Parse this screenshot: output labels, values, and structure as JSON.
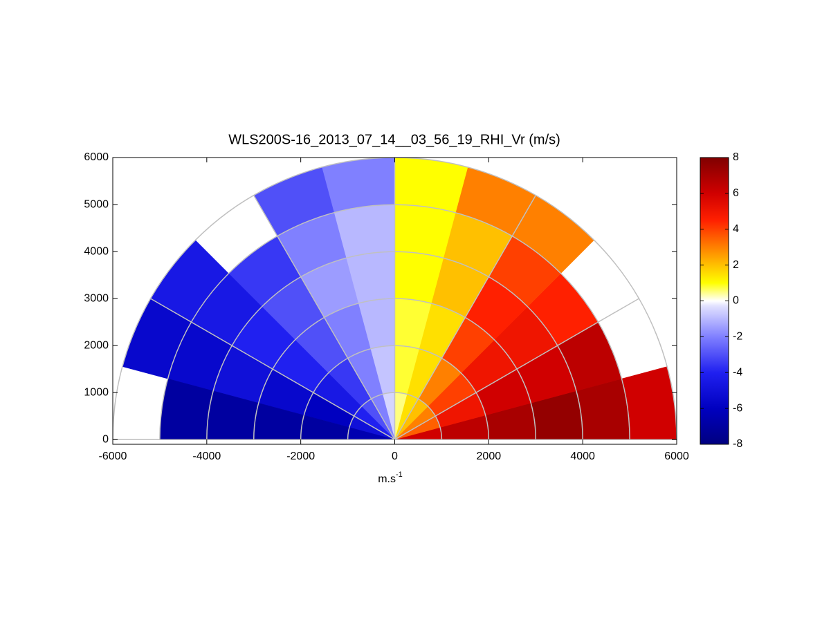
{
  "chart_data": {
    "type": "polar_sector_heatmap",
    "title": "WLS200S-16_2013_07_14__03_56_19_RHI_Vr (m/s)",
    "xlabel": "m.s",
    "xlabel_sup": "-1",
    "xlim": [
      -6000,
      6000
    ],
    "xticks": [
      -6000,
      -4000,
      -2000,
      0,
      2000,
      4000,
      6000
    ],
    "ylim": [
      -100,
      6000
    ],
    "yticks": [
      0,
      1000,
      2000,
      3000,
      4000,
      5000,
      6000
    ],
    "angle_bins": [
      0,
      15,
      30,
      45,
      60,
      75,
      90,
      105,
      120,
      135,
      150,
      165,
      180
    ],
    "range_bins": [
      0,
      1000,
      2000,
      3000,
      4000,
      5000,
      6000
    ],
    "values": [
      [
        6,
        6.5,
        7,
        7.5,
        7,
        6
      ],
      [
        3.5,
        5,
        6,
        6,
        6.5,
        null
      ],
      [
        3,
        4,
        5,
        5,
        4.5,
        null
      ],
      [
        2,
        3,
        4,
        4.5,
        4,
        3
      ],
      [
        1.5,
        1.5,
        1.5,
        2,
        2,
        3
      ],
      [
        0.5,
        0.8,
        0.8,
        1,
        1,
        1
      ],
      [
        -0.5,
        -0.8,
        -1,
        -1,
        -1,
        -2
      ],
      [
        -2,
        -2,
        -2,
        -1.5,
        -2,
        -3
      ],
      [
        -3,
        -3.5,
        -3,
        -3,
        -3.5,
        null
      ],
      [
        -4,
        -4.5,
        -4,
        -4,
        -4.5,
        -4.5
      ],
      [
        -5,
        -6,
        -5.5,
        -5,
        -5.5,
        -5.5
      ],
      [
        -6.5,
        -7,
        -7,
        -7,
        -7,
        null
      ]
    ],
    "ring_ticks": [
      1000,
      2000,
      3000,
      4000,
      5000,
      6000
    ],
    "spoke_ticks": [
      0,
      30,
      60,
      90,
      120,
      150,
      180
    ],
    "clim": [
      -8,
      8
    ],
    "cticks": [
      -8,
      -6,
      -4,
      -2,
      0,
      2,
      4,
      6,
      8
    ],
    "colorscale": [
      {
        "value": -8,
        "color": "#000080"
      },
      {
        "value": -6,
        "color": "#0000c0"
      },
      {
        "value": -4,
        "color": "#2020f0"
      },
      {
        "value": -2,
        "color": "#8080ff"
      },
      {
        "value": -0.3,
        "color": "#e0e0ff"
      },
      {
        "value": 0,
        "color": "#ffffff"
      },
      {
        "value": 0.5,
        "color": "#ffff80"
      },
      {
        "value": 1,
        "color": "#ffff00"
      },
      {
        "value": 2,
        "color": "#ffc000"
      },
      {
        "value": 3,
        "color": "#ff8000"
      },
      {
        "value": 4.5,
        "color": "#ff2000"
      },
      {
        "value": 6,
        "color": "#d00000"
      },
      {
        "value": 8,
        "color": "#800000"
      }
    ]
  }
}
